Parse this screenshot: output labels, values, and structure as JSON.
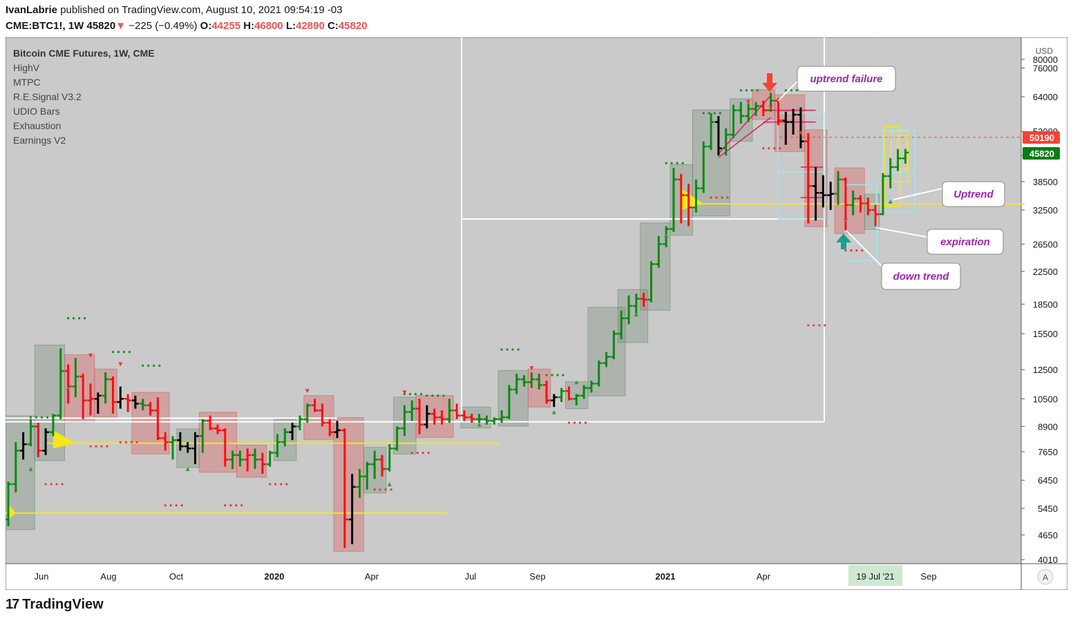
{
  "header": {
    "author": "IvanLabrie",
    "published_text": "published on TradingView.com, August 10, 2021 09:54:19 -03",
    "symbol": "CME:BTC1!, 1W",
    "last": "45820",
    "change_arrow": "▼",
    "change": "−225 (−0.49%)",
    "o_label": "O:",
    "o": "44255",
    "h_label": "H:",
    "h": "46800",
    "l_label": "L:",
    "l": "42890",
    "c_label": "C:",
    "c": "45820"
  },
  "indicators": {
    "title": "Bitcoin CME Futures, 1W, CME",
    "list": [
      "HighV",
      "MTPC",
      "R.E.Signal V3.2",
      "UDIO Bars",
      "Exhaustion",
      "Earnings V2"
    ]
  },
  "price_axis": {
    "currency": "USD",
    "ticks": [
      "80000",
      "76000",
      "64000",
      "52000",
      "45000",
      "38500",
      "32500",
      "26500",
      "22500",
      "18500",
      "15500",
      "12500",
      "10500",
      "8900",
      "7650",
      "6450",
      "5450",
      "4650",
      "4010"
    ],
    "label_red": "50190",
    "label_green": "45820",
    "auto_label": "A"
  },
  "time_axis": {
    "labels": [
      "Jun",
      "Aug",
      "Oct",
      "2020",
      "Apr",
      "Jul",
      "Sep",
      "2021",
      "Apr",
      "Sep"
    ],
    "highlight_label": "19 Jul '21"
  },
  "annotations": {
    "uptrend_failure": "uptrend failure",
    "uptrend": "Uptrend",
    "expiration": "expiration",
    "down_trend": "down trend"
  },
  "colors": {
    "bg": "#cacaca",
    "bull": "#0a8a12",
    "bear": "#ff0d0d",
    "neutral": "#000000",
    "yellow": "#f5e71a",
    "accent_red": "#f44336",
    "accent_teal": "#1e9e8c",
    "label_text": "#9c27b0"
  },
  "chart_data": {
    "type": "ohlc",
    "xlabel": "",
    "ylabel": "",
    "scale": "log",
    "ylim": [
      3900,
      82000
    ],
    "weeks": [
      {
        "o": 5100,
        "h": 6400,
        "l": 4900,
        "c": 6300,
        "d": "u"
      },
      {
        "o": 6300,
        "h": 8100,
        "l": 6000,
        "c": 7700,
        "d": "u"
      },
      {
        "o": 7700,
        "h": 8600,
        "l": 7300,
        "c": 8000,
        "d": "n"
      },
      {
        "o": 8000,
        "h": 9300,
        "l": 7900,
        "c": 8900,
        "d": "u"
      },
      {
        "o": 8900,
        "h": 9100,
        "l": 7400,
        "c": 7700,
        "d": "d"
      },
      {
        "o": 7700,
        "h": 8800,
        "l": 7500,
        "c": 8600,
        "d": "n"
      },
      {
        "o": 8600,
        "h": 9600,
        "l": 8400,
        "c": 9500,
        "d": "u"
      },
      {
        "o": 9500,
        "h": 14200,
        "l": 9300,
        "c": 12400,
        "d": "u"
      },
      {
        "o": 12400,
        "h": 12900,
        "l": 10200,
        "c": 11300,
        "d": "d"
      },
      {
        "o": 11300,
        "h": 13400,
        "l": 10600,
        "c": 12000,
        "d": "u"
      },
      {
        "o": 12000,
        "h": 12200,
        "l": 9300,
        "c": 10400,
        "d": "d"
      },
      {
        "o": 10400,
        "h": 11500,
        "l": 9500,
        "c": 10500,
        "d": "d"
      },
      {
        "o": 10500,
        "h": 10900,
        "l": 9600,
        "c": 10700,
        "d": "n"
      },
      {
        "o": 10700,
        "h": 12300,
        "l": 10200,
        "c": 11800,
        "d": "u"
      },
      {
        "o": 11800,
        "h": 12000,
        "l": 9600,
        "c": 10300,
        "d": "d"
      },
      {
        "o": 10300,
        "h": 11300,
        "l": 9900,
        "c": 10500,
        "d": "n"
      },
      {
        "o": 10500,
        "h": 10800,
        "l": 9700,
        "c": 10400,
        "d": "d"
      },
      {
        "o": 10400,
        "h": 10700,
        "l": 9900,
        "c": 10200,
        "d": "n"
      },
      {
        "o": 10200,
        "h": 10500,
        "l": 9800,
        "c": 10100,
        "d": "u"
      },
      {
        "o": 10100,
        "h": 10300,
        "l": 9500,
        "c": 9800,
        "d": "d"
      },
      {
        "o": 9800,
        "h": 10600,
        "l": 8200,
        "c": 8300,
        "d": "d"
      },
      {
        "o": 8300,
        "h": 8600,
        "l": 7700,
        "c": 8100,
        "d": "d"
      },
      {
        "o": 8100,
        "h": 8400,
        "l": 7300,
        "c": 8200,
        "d": "u"
      },
      {
        "o": 8200,
        "h": 8600,
        "l": 7700,
        "c": 7900,
        "d": "n"
      },
      {
        "o": 7900,
        "h": 8100,
        "l": 7600,
        "c": 7800,
        "d": "n"
      },
      {
        "o": 7800,
        "h": 8600,
        "l": 7100,
        "c": 8400,
        "d": "n"
      },
      {
        "o": 8400,
        "h": 9300,
        "l": 7600,
        "c": 9200,
        "d": "u"
      },
      {
        "o": 9200,
        "h": 9500,
        "l": 8700,
        "c": 8800,
        "d": "d"
      },
      {
        "o": 8800,
        "h": 9000,
        "l": 8500,
        "c": 8700,
        "d": "d"
      },
      {
        "o": 8700,
        "h": 8800,
        "l": 7000,
        "c": 7300,
        "d": "d"
      },
      {
        "o": 7300,
        "h": 7700,
        "l": 6900,
        "c": 7500,
        "d": "u"
      },
      {
        "o": 7500,
        "h": 7700,
        "l": 7000,
        "c": 7300,
        "d": "u"
      },
      {
        "o": 7300,
        "h": 7800,
        "l": 6800,
        "c": 7500,
        "d": "d"
      },
      {
        "o": 7500,
        "h": 7800,
        "l": 6900,
        "c": 7300,
        "d": "u"
      },
      {
        "o": 7300,
        "h": 7600,
        "l": 6700,
        "c": 7100,
        "d": "d"
      },
      {
        "o": 7100,
        "h": 7700,
        "l": 7000,
        "c": 7600,
        "d": "u"
      },
      {
        "o": 7600,
        "h": 8500,
        "l": 7400,
        "c": 8100,
        "d": "u"
      },
      {
        "o": 8100,
        "h": 8800,
        "l": 7900,
        "c": 8600,
        "d": "u"
      },
      {
        "o": 8600,
        "h": 9100,
        "l": 8200,
        "c": 8900,
        "d": "n"
      },
      {
        "o": 8900,
        "h": 9500,
        "l": 8700,
        "c": 9300,
        "d": "u"
      },
      {
        "o": 9300,
        "h": 10200,
        "l": 9100,
        "c": 10100,
        "d": "u"
      },
      {
        "o": 10100,
        "h": 10500,
        "l": 9700,
        "c": 9800,
        "d": "d"
      },
      {
        "o": 9800,
        "h": 10200,
        "l": 8900,
        "c": 9100,
        "d": "d"
      },
      {
        "o": 9100,
        "h": 9300,
        "l": 8400,
        "c": 8600,
        "d": "d"
      },
      {
        "o": 8600,
        "h": 9200,
        "l": 8300,
        "c": 8700,
        "d": "n"
      },
      {
        "o": 8700,
        "h": 8800,
        "l": 4300,
        "c": 5100,
        "d": "d"
      },
      {
        "o": 5100,
        "h": 6700,
        "l": 4400,
        "c": 6200,
        "d": "n"
      },
      {
        "o": 6200,
        "h": 6900,
        "l": 5800,
        "c": 6600,
        "d": "u"
      },
      {
        "o": 6600,
        "h": 7200,
        "l": 6100,
        "c": 7100,
        "d": "u"
      },
      {
        "o": 7100,
        "h": 7700,
        "l": 6500,
        "c": 7300,
        "d": "u"
      },
      {
        "o": 7300,
        "h": 7500,
        "l": 6600,
        "c": 6900,
        "d": "d"
      },
      {
        "o": 6900,
        "h": 8000,
        "l": 6800,
        "c": 7800,
        "d": "u"
      },
      {
        "o": 7800,
        "h": 8900,
        "l": 7700,
        "c": 8800,
        "d": "u"
      },
      {
        "o": 8800,
        "h": 10100,
        "l": 8400,
        "c": 9700,
        "d": "u"
      },
      {
        "o": 9700,
        "h": 10400,
        "l": 9200,
        "c": 9900,
        "d": "u"
      },
      {
        "o": 9900,
        "h": 10500,
        "l": 8500,
        "c": 9000,
        "d": "d"
      },
      {
        "o": 9000,
        "h": 10100,
        "l": 8800,
        "c": 9600,
        "d": "n"
      },
      {
        "o": 9600,
        "h": 9900,
        "l": 9000,
        "c": 9400,
        "d": "d"
      },
      {
        "o": 9400,
        "h": 9800,
        "l": 9000,
        "c": 9300,
        "d": "d"
      },
      {
        "o": 9300,
        "h": 10500,
        "l": 9100,
        "c": 9800,
        "d": "u"
      },
      {
        "o": 9800,
        "h": 10200,
        "l": 9300,
        "c": 9500,
        "d": "d"
      },
      {
        "o": 9500,
        "h": 9800,
        "l": 9200,
        "c": 9400,
        "d": "d"
      },
      {
        "o": 9400,
        "h": 9600,
        "l": 9100,
        "c": 9300,
        "d": "d"
      },
      {
        "o": 9300,
        "h": 9600,
        "l": 9100,
        "c": 9300,
        "d": "u"
      },
      {
        "o": 9300,
        "h": 9500,
        "l": 9000,
        "c": 9200,
        "d": "u"
      },
      {
        "o": 9200,
        "h": 9400,
        "l": 9000,
        "c": 9300,
        "d": "u"
      },
      {
        "o": 9300,
        "h": 9800,
        "l": 9100,
        "c": 9400,
        "d": "u"
      },
      {
        "o": 9400,
        "h": 11400,
        "l": 9300,
        "c": 11100,
        "d": "u"
      },
      {
        "o": 11100,
        "h": 12200,
        "l": 10800,
        "c": 11800,
        "d": "u"
      },
      {
        "o": 11800,
        "h": 12100,
        "l": 11300,
        "c": 11600,
        "d": "u"
      },
      {
        "o": 11600,
        "h": 12300,
        "l": 11200,
        "c": 11800,
        "d": "u"
      },
      {
        "o": 11800,
        "h": 12200,
        "l": 11100,
        "c": 11400,
        "d": "u"
      },
      {
        "o": 11400,
        "h": 11700,
        "l": 10200,
        "c": 10400,
        "d": "d"
      },
      {
        "o": 10400,
        "h": 10800,
        "l": 10000,
        "c": 10600,
        "d": "n"
      },
      {
        "o": 10600,
        "h": 11200,
        "l": 10300,
        "c": 11000,
        "d": "u"
      },
      {
        "o": 11000,
        "h": 11300,
        "l": 10400,
        "c": 10500,
        "d": "d"
      },
      {
        "o": 10500,
        "h": 10800,
        "l": 10100,
        "c": 10700,
        "d": "u"
      },
      {
        "o": 10700,
        "h": 11400,
        "l": 10500,
        "c": 11200,
        "d": "u"
      },
      {
        "o": 11200,
        "h": 11700,
        "l": 10900,
        "c": 11500,
        "d": "u"
      },
      {
        "o": 11500,
        "h": 13200,
        "l": 11300,
        "c": 13000,
        "d": "u"
      },
      {
        "o": 13000,
        "h": 13900,
        "l": 12700,
        "c": 13500,
        "d": "u"
      },
      {
        "o": 13500,
        "h": 15800,
        "l": 13300,
        "c": 15500,
        "d": "u"
      },
      {
        "o": 15500,
        "h": 17800,
        "l": 15000,
        "c": 17000,
        "d": "u"
      },
      {
        "o": 17000,
        "h": 19500,
        "l": 16400,
        "c": 18300,
        "d": "u"
      },
      {
        "o": 18300,
        "h": 19700,
        "l": 17400,
        "c": 19100,
        "d": "u"
      },
      {
        "o": 19100,
        "h": 19800,
        "l": 18200,
        "c": 19000,
        "d": "d"
      },
      {
        "o": 19000,
        "h": 23900,
        "l": 18700,
        "c": 23500,
        "d": "u"
      },
      {
        "o": 23500,
        "h": 27800,
        "l": 23000,
        "c": 26500,
        "d": "u"
      },
      {
        "o": 26500,
        "h": 29500,
        "l": 26000,
        "c": 29000,
        "d": "u"
      },
      {
        "o": 29000,
        "h": 41800,
        "l": 28500,
        "c": 39000,
        "d": "u"
      },
      {
        "o": 39000,
        "h": 40300,
        "l": 30000,
        "c": 35500,
        "d": "d"
      },
      {
        "o": 35500,
        "h": 38000,
        "l": 29500,
        "c": 33000,
        "d": "d"
      },
      {
        "o": 33000,
        "h": 39000,
        "l": 32000,
        "c": 37000,
        "d": "u"
      },
      {
        "o": 37000,
        "h": 49000,
        "l": 36000,
        "c": 47500,
        "d": "u"
      },
      {
        "o": 47500,
        "h": 58000,
        "l": 46500,
        "c": 55000,
        "d": "u"
      },
      {
        "o": 55000,
        "h": 57000,
        "l": 45000,
        "c": 47000,
        "d": "n"
      },
      {
        "o": 47000,
        "h": 53000,
        "l": 45000,
        "c": 51000,
        "d": "u"
      },
      {
        "o": 51000,
        "h": 61000,
        "l": 50000,
        "c": 59000,
        "d": "u"
      },
      {
        "o": 59000,
        "h": 62000,
        "l": 54500,
        "c": 57000,
        "d": "u"
      },
      {
        "o": 57000,
        "h": 61500,
        "l": 55000,
        "c": 59500,
        "d": "u"
      },
      {
        "o": 59500,
        "h": 62000,
        "l": 57000,
        "c": 60500,
        "d": "u"
      },
      {
        "o": 60500,
        "h": 62500,
        "l": 57000,
        "c": 59000,
        "d": "d"
      },
      {
        "o": 59000,
        "h": 65500,
        "l": 58500,
        "c": 62500,
        "d": "u"
      },
      {
        "o": 62500,
        "h": 63500,
        "l": 54000,
        "c": 55500,
        "d": "d"
      },
      {
        "o": 55500,
        "h": 58500,
        "l": 48000,
        "c": 55000,
        "d": "n"
      },
      {
        "o": 55000,
        "h": 59500,
        "l": 51000,
        "c": 57500,
        "d": "n"
      },
      {
        "o": 57500,
        "h": 60000,
        "l": 47000,
        "c": 49000,
        "d": "n"
      },
      {
        "o": 49000,
        "h": 51500,
        "l": 30000,
        "c": 37500,
        "d": "d"
      },
      {
        "o": 37500,
        "h": 42000,
        "l": 30500,
        "c": 36000,
        "d": "n"
      },
      {
        "o": 36000,
        "h": 40000,
        "l": 33000,
        "c": 35500,
        "d": "n"
      },
      {
        "o": 35500,
        "h": 38500,
        "l": 32500,
        "c": 35800,
        "d": "n"
      },
      {
        "o": 35800,
        "h": 41000,
        "l": 33500,
        "c": 39000,
        "d": "u"
      },
      {
        "o": 39000,
        "h": 39500,
        "l": 28800,
        "c": 33500,
        "d": "d"
      },
      {
        "o": 33500,
        "h": 36500,
        "l": 31500,
        "c": 34800,
        "d": "u"
      },
      {
        "o": 34800,
        "h": 35500,
        "l": 32000,
        "c": 33800,
        "d": "d"
      },
      {
        "o": 33800,
        "h": 35000,
        "l": 31500,
        "c": 32500,
        "d": "d"
      },
      {
        "o": 32500,
        "h": 33500,
        "l": 29500,
        "c": 31700,
        "d": "d"
      },
      {
        "o": 31700,
        "h": 40500,
        "l": 31500,
        "c": 39800,
        "d": "u"
      },
      {
        "o": 39800,
        "h": 44300,
        "l": 37000,
        "c": 42000,
        "d": "u"
      },
      {
        "o": 42000,
        "h": 46800,
        "l": 41000,
        "c": 44255,
        "d": "u"
      },
      {
        "o": 44255,
        "h": 46800,
        "l": 42890,
        "c": 45820,
        "d": "u"
      }
    ]
  }
}
